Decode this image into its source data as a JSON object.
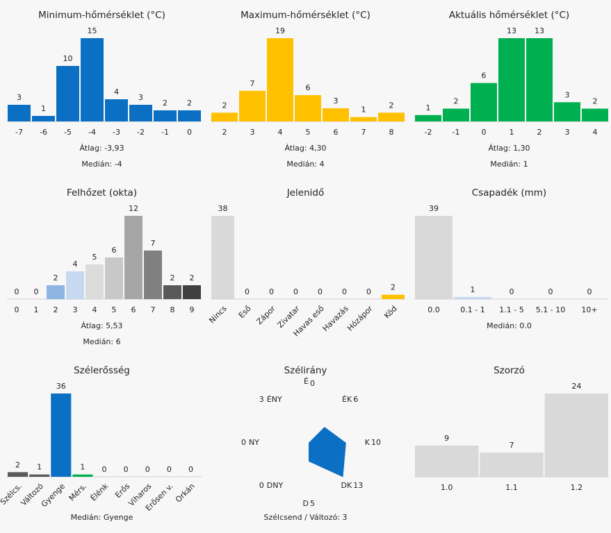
{
  "chart_data": [
    {
      "type": "bar",
      "title": "Minimum-hőmérséklet (°C)",
      "categories": [
        "-7",
        "-6",
        "-5",
        "-4",
        "-3",
        "-2",
        "-1",
        "0"
      ],
      "values": [
        3,
        1,
        10,
        15,
        4,
        3,
        2,
        2
      ],
      "colors": [
        "#0b6fc3",
        "#0b6fc3",
        "#0b6fc3",
        "#0b6fc3",
        "#0b6fc3",
        "#0b6fc3",
        "#0b6fc3",
        "#0b6fc3"
      ],
      "annotations": [
        "Átlag: -3,93",
        "Medián: -4"
      ]
    },
    {
      "type": "bar",
      "title": "Maximum-hőmérséklet (°C)",
      "categories": [
        "2",
        "3",
        "4",
        "5",
        "6",
        "7",
        "8"
      ],
      "values": [
        2,
        7,
        19,
        6,
        3,
        1,
        2
      ],
      "colors": [
        "#ffc000",
        "#ffc000",
        "#ffc000",
        "#ffc000",
        "#ffc000",
        "#ffc000",
        "#ffc000"
      ],
      "annotations": [
        "Átlag: 4,30",
        "Medián: 4"
      ]
    },
    {
      "type": "bar",
      "title": "Aktuális hőmérséklet (°C)",
      "categories": [
        "-2",
        "-1",
        "0",
        "1",
        "2",
        "3",
        "4"
      ],
      "values": [
        1,
        2,
        6,
        13,
        13,
        3,
        2
      ],
      "colors": [
        "#00b050",
        "#00b050",
        "#00b050",
        "#00b050",
        "#00b050",
        "#00b050",
        "#00b050"
      ],
      "annotations": [
        "Átlag: 1,30",
        "Medián: 1"
      ]
    },
    {
      "type": "bar",
      "title": "Felhőzet (okta)",
      "categories": [
        "0",
        "1",
        "2",
        "3",
        "4",
        "5",
        "6",
        "7",
        "8",
        "9"
      ],
      "values": [
        0,
        0,
        2,
        4,
        5,
        6,
        12,
        7,
        2,
        2
      ],
      "colors": [
        "#d9d9d9",
        "#d9d9d9",
        "#8eb4e3",
        "#c6d9f1",
        "#dcdcdc",
        "#c8c8c8",
        "#a6a6a6",
        "#808080",
        "#595959",
        "#404040"
      ],
      "annotations": [
        "Átlag: 5,53",
        "Medián: 6"
      ]
    },
    {
      "type": "bar",
      "title": "Jelenidő",
      "categories": [
        "Nincs",
        "Eső",
        "Zápor",
        "Zivatar",
        "Havas eső",
        "Havazás",
        "Hózápor",
        "Köd"
      ],
      "values": [
        38,
        0,
        0,
        0,
        0,
        0,
        0,
        2
      ],
      "colors": [
        "#d9d9d9",
        "#d9d9d9",
        "#d9d9d9",
        "#d9d9d9",
        "#d9d9d9",
        "#d9d9d9",
        "#d9d9d9",
        "#ffc000"
      ],
      "rotated_labels": true
    },
    {
      "type": "bar",
      "title": "Csapadék (mm)",
      "categories": [
        "0.0",
        "0.1 - 1",
        "1.1 - 5",
        "5.1 - 10",
        "10+"
      ],
      "values": [
        39,
        1,
        0,
        0,
        0
      ],
      "colors": [
        "#d9d9d9",
        "#c6d9f1",
        "#d9d9d9",
        "#d9d9d9",
        "#d9d9d9"
      ],
      "annotations": [
        "Medián: 0.0"
      ]
    },
    {
      "type": "bar",
      "title": "Szélerősség",
      "categories": [
        "Szélcs.",
        "Változó",
        "Gyenge",
        "Mérs.",
        "Élénk",
        "Erős",
        "Viharos",
        "Erősen v.",
        "Orkán"
      ],
      "values": [
        2,
        1,
        36,
        1,
        0,
        0,
        0,
        0,
        0
      ],
      "colors": [
        "#595959",
        "#595959",
        "#0b6fc3",
        "#00b050",
        "#d9d9d9",
        "#d9d9d9",
        "#d9d9d9",
        "#d9d9d9",
        "#d9d9d9"
      ],
      "annotations": [
        "Medián: Gyenge"
      ],
      "rotated_labels": true
    },
    {
      "type": "radar",
      "title": "Szélirány",
      "categories": [
        "É",
        "ÉK",
        "K",
        "DK",
        "D",
        "DNY",
        "NY",
        "ÉNY"
      ],
      "values": [
        0,
        6,
        10,
        13,
        5,
        0,
        0,
        3
      ],
      "color": "#0b6fc3",
      "annotations": [
        "Szélcsend / Változó: 3"
      ]
    },
    {
      "type": "bar",
      "title": "Szorzó",
      "categories": [
        "1.0",
        "1.1",
        "1.2"
      ],
      "values": [
        9,
        7,
        24
      ],
      "colors": [
        "#d9d9d9",
        "#d9d9d9",
        "#d9d9d9"
      ]
    }
  ]
}
